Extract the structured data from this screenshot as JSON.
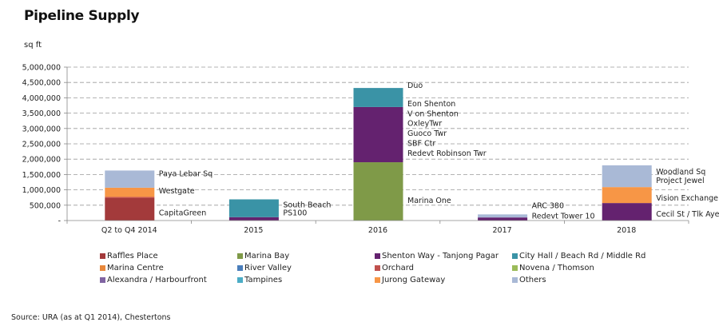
{
  "chart_data": {
    "type": "bar",
    "stacked": true,
    "title": "Pipeline Supply",
    "ylabel": "sq ft",
    "xlabel": "",
    "ylim": [
      0,
      5000000
    ],
    "yticks": [
      0,
      500000,
      1000000,
      1500000,
      2000000,
      2500000,
      3000000,
      3500000,
      4000000,
      4500000,
      5000000
    ],
    "ytick_labels": [
      "-",
      "500,000",
      "1,000,000",
      "1,500,000",
      "2,000,000",
      "2,500,000",
      "3,000,000",
      "3,500,000",
      "4,000,000",
      "4,500,000",
      "5,000,000"
    ],
    "grid": "horizontal-dashed",
    "legend_position": "bottom",
    "categories": [
      "Q2 to Q4 2014",
      "2015",
      "2016",
      "2017",
      "2018"
    ],
    "series": [
      {
        "name": "Raffles Place",
        "color": "#a33a3b",
        "values": [
          730000,
          0,
          0,
          0,
          0
        ]
      },
      {
        "name": "Marina Bay",
        "color": "#7f9a48",
        "values": [
          0,
          0,
          1900000,
          0,
          0
        ]
      },
      {
        "name": "Shenton Way - Tanjong Pagar",
        "color": "#64226f",
        "values": [
          0,
          110000,
          1800000,
          100000,
          570000
        ]
      },
      {
        "name": "City Hall / Beach Rd / Middle Rd",
        "color": "#3a93a6",
        "values": [
          0,
          580000,
          620000,
          0,
          0
        ]
      },
      {
        "name": "Marina Centre",
        "color": "#e8873a",
        "values": [
          0,
          0,
          0,
          0,
          0
        ]
      },
      {
        "name": "River Valley",
        "color": "#4a7ebb",
        "values": [
          0,
          0,
          0,
          0,
          0
        ]
      },
      {
        "name": "Orchard",
        "color": "#c0504d",
        "values": [
          40000,
          0,
          0,
          0,
          0
        ]
      },
      {
        "name": "Novena / Thomson",
        "color": "#9bbb59",
        "values": [
          0,
          0,
          0,
          0,
          0
        ]
      },
      {
        "name": "Alexandra / Harbourfront",
        "color": "#8064a2",
        "values": [
          0,
          0,
          0,
          0,
          0
        ]
      },
      {
        "name": "Tampines",
        "color": "#4bacc6",
        "values": [
          0,
          0,
          0,
          0,
          0
        ]
      },
      {
        "name": "Jurong Gateway",
        "color": "#f79646",
        "values": [
          300000,
          0,
          0,
          0,
          520000
        ]
      },
      {
        "name": "Others",
        "color": "#a9b9d6",
        "values": [
          560000,
          0,
          0,
          100000,
          710000
        ]
      }
    ],
    "annotations": [
      {
        "category": "Q2 to Q4 2014",
        "labels": [
          "Paya Lebar Sq",
          "Westgate",
          "CapitaGreen"
        ]
      },
      {
        "category": "2015",
        "labels": [
          "South Beach",
          "PS100"
        ]
      },
      {
        "category": "2016",
        "labels": [
          "Duo",
          "Eon Shenton",
          "V on Shenton",
          "OxleyTwr",
          "Guoco Twr",
          "SBF Ctr",
          "Redevt Robinson Twr",
          "Marina One"
        ]
      },
      {
        "category": "2017",
        "labels": [
          "ARC 380",
          "Redevt Tower 10"
        ]
      },
      {
        "category": "2018",
        "labels": [
          "Woodland Sq",
          "Project Jewel",
          "Vision Exchange",
          "Cecil  St / Tlk Ayer"
        ]
      }
    ]
  },
  "header": {
    "title": "Pipeline Supply",
    "unit": "sq ft"
  },
  "legend": [
    {
      "label": "Raffles Place",
      "color": "#a33a3b"
    },
    {
      "label": "Marina Bay",
      "color": "#7f9a48"
    },
    {
      "label": "Shenton Way - Tanjong Pagar",
      "color": "#64226f"
    },
    {
      "label": "City Hall / Beach Rd / Middle Rd",
      "color": "#3a93a6"
    },
    {
      "label": "Marina Centre",
      "color": "#e8873a"
    },
    {
      "label": "River Valley",
      "color": "#4a7ebb"
    },
    {
      "label": "Orchard",
      "color": "#c0504d"
    },
    {
      "label": "Novena / Thomson",
      "color": "#9bbb59"
    },
    {
      "label": "Alexandra / Harbourfront",
      "color": "#8064a2"
    },
    {
      "label": "Tampines",
      "color": "#4bacc6"
    },
    {
      "label": "Jurong Gateway",
      "color": "#f79646"
    },
    {
      "label": "Others",
      "color": "#a9b9d6"
    }
  ],
  "footer": {
    "source": "Source: URA (as at Q1 2014), Chestertons"
  }
}
